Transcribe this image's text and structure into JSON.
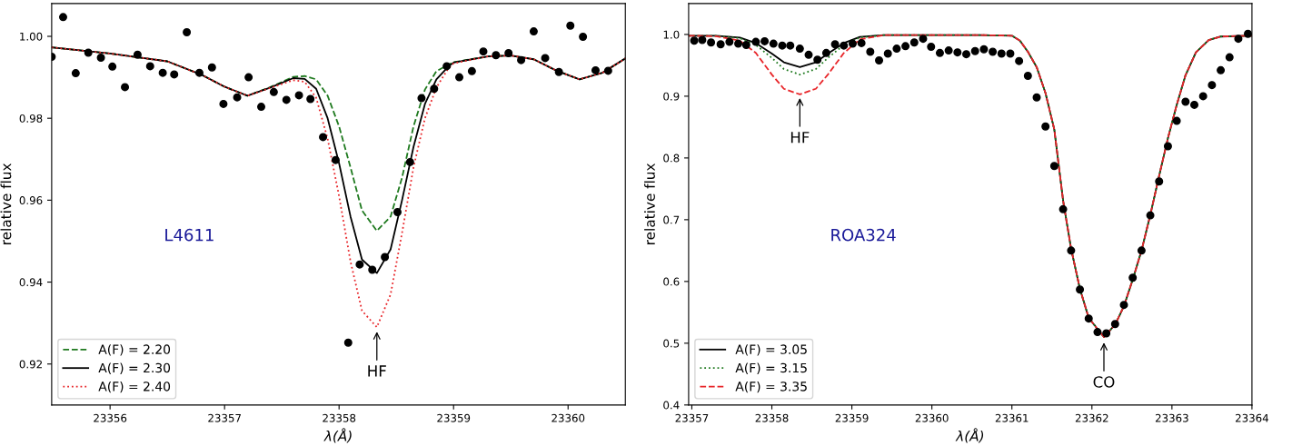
{
  "chart_data": [
    {
      "type": "line",
      "xlabel": "λ(Å)",
      "ylabel": "relative flux",
      "xlim": [
        23355.49,
        23360.5
      ],
      "ylim": [
        0.91,
        1.008
      ],
      "xticks": [
        23356,
        23357,
        23358,
        23359,
        23360
      ],
      "yticks": [
        0.92,
        0.94,
        0.96,
        0.98,
        {
          "value": 1.0,
          "label": "1.00"
        }
      ],
      "grid": false,
      "legend": "bottom left",
      "annotations": [
        "L4611",
        {
          "text": "HF",
          "x": 23358.33,
          "y": 0.9285
        }
      ],
      "series": [
        {
          "name": "A(F) = 2.20",
          "color": "#1f7a1f",
          "line_style": "dashed",
          "marker": "none",
          "x": [
            23355.49,
            23356.0,
            23356.5,
            23356.8,
            23357.0,
            23357.2,
            23357.4,
            23357.6,
            23357.7,
            23357.8,
            23357.9,
            23358.0,
            23358.1,
            23358.2,
            23358.33,
            23358.45,
            23358.55,
            23358.65,
            23358.75,
            23358.85,
            23358.95,
            23359.0,
            23359.3,
            23359.5,
            23359.7,
            23359.9,
            23360.1,
            23360.3,
            23360.5
          ],
          "values": [
            0.9973,
            0.9958,
            0.9939,
            0.9906,
            0.9877,
            0.9855,
            0.9876,
            0.9901,
            0.9903,
            0.9895,
            0.9855,
            0.978,
            0.968,
            0.9575,
            0.9525,
            0.956,
            0.9655,
            0.978,
            0.987,
            0.9915,
            0.993,
            0.9937,
            0.9951,
            0.9953,
            0.9944,
            0.9916,
            0.9895,
            0.9911,
            0.9946
          ]
        },
        {
          "name": "A(F) = 2.30",
          "color": "#000000",
          "line_style": "solid",
          "marker": "none",
          "x": [
            23355.49,
            23356.0,
            23356.5,
            23356.8,
            23357.0,
            23357.2,
            23357.4,
            23357.6,
            23357.7,
            23357.8,
            23357.9,
            23358.0,
            23358.1,
            23358.2,
            23358.33,
            23358.45,
            23358.55,
            23358.65,
            23358.75,
            23358.85,
            23358.95,
            23359.0,
            23359.3,
            23359.5,
            23359.7,
            23359.9,
            23360.1,
            23360.3,
            23360.5
          ],
          "values": [
            0.9973,
            0.9958,
            0.9939,
            0.9906,
            0.9877,
            0.9855,
            0.9875,
            0.9898,
            0.9896,
            0.9872,
            0.98,
            0.969,
            0.956,
            0.9455,
            0.9422,
            0.948,
            0.96,
            0.973,
            0.9835,
            0.9895,
            0.9925,
            0.9936,
            0.9951,
            0.9953,
            0.9944,
            0.9916,
            0.9895,
            0.9911,
            0.9946
          ]
        },
        {
          "name": "A(F) = 2.40",
          "color": "#e8262a",
          "line_style": "dotted",
          "marker": "none",
          "x": [
            23355.49,
            23356.0,
            23356.5,
            23356.8,
            23357.0,
            23357.2,
            23357.4,
            23357.6,
            23357.7,
            23357.8,
            23357.9,
            23358.0,
            23358.1,
            23358.2,
            23358.33,
            23358.45,
            23358.55,
            23358.65,
            23358.75,
            23358.85,
            23358.95,
            23359.0,
            23359.3,
            23359.5,
            23359.7,
            23359.9,
            23360.1,
            23360.3,
            23360.5
          ],
          "values": [
            0.9973,
            0.9958,
            0.9939,
            0.9906,
            0.9877,
            0.9855,
            0.9874,
            0.9893,
            0.9889,
            0.985,
            0.975,
            0.961,
            0.945,
            0.933,
            0.929,
            0.937,
            0.952,
            0.968,
            0.98,
            0.9875,
            0.992,
            0.9934,
            0.9951,
            0.9953,
            0.9944,
            0.9916,
            0.9895,
            0.9911,
            0.9946
          ]
        },
        {
          "type": "scatter",
          "color": "#000000",
          "marker": "circle",
          "x": [
            23355.49,
            23355.59,
            23355.7,
            23355.81,
            23355.92,
            23356.02,
            23356.13,
            23356.24,
            23356.35,
            23356.46,
            23356.56,
            23356.67,
            23356.78,
            23356.89,
            23356.99,
            23357.11,
            23357.21,
            23357.32,
            23357.43,
            23357.54,
            23357.65,
            23357.75,
            23357.86,
            23357.97,
            23358.08,
            23358.18,
            23358.29,
            23358.4,
            23358.51,
            23358.62,
            23358.72,
            23358.83,
            23358.94,
            23359.05,
            23359.16,
            23359.26,
            23359.37,
            23359.48,
            23359.59,
            23359.7,
            23359.8,
            23359.92,
            23360.02,
            23360.13,
            23360.24,
            23360.35
          ],
          "values": [
            0.995,
            1.0047,
            0.991,
            0.996,
            0.9948,
            0.9926,
            0.9876,
            0.9955,
            0.9927,
            0.9911,
            0.9907,
            1.001,
            0.9911,
            0.9924,
            0.9835,
            0.9851,
            0.99,
            0.9828,
            0.9864,
            0.9845,
            0.9856,
            0.9847,
            0.9754,
            0.9698,
            0.9252,
            0.9443,
            0.943,
            0.9461,
            0.9571,
            0.9693,
            0.9849,
            0.9872,
            0.9927,
            0.99,
            0.9915,
            0.9963,
            0.9954,
            0.9959,
            0.9942,
            1.0012,
            0.9947,
            0.9913,
            1.0026,
            0.9999,
            0.9917,
            0.9916
          ]
        }
      ]
    },
    {
      "type": "line",
      "xlabel": "λ(Å)",
      "ylabel": "relative flux",
      "xlim": [
        23356.96,
        23364
      ],
      "ylim": [
        0.4,
        1.05
      ],
      "xticks": [
        23357,
        23358,
        23359,
        23360,
        23361,
        23362,
        23363,
        23364
      ],
      "yticks": [
        0.4,
        0.5,
        0.6,
        0.7,
        0.8,
        0.9,
        {
          "value": 1.0,
          "label": "1.0"
        }
      ],
      "grid": false,
      "legend": "bottom left",
      "annotations": [
        "ROA324",
        {
          "text": "HF",
          "x": 23358.35,
          "y": 0.901
        },
        {
          "text": "CO",
          "x": 23362.15,
          "y": 0.505
        }
      ],
      "series": [
        {
          "name": "A(F) = 3.05",
          "color": "#000000",
          "line_style": "solid",
          "marker": "none",
          "x": [
            23356.96,
            23357.3,
            23357.6,
            23357.8,
            23358.0,
            23358.15,
            23358.35,
            23358.55,
            23358.7,
            23358.9,
            23359.1,
            23359.4,
            23360.0,
            23360.6,
            23361.0,
            23361.1,
            23361.2,
            23361.31,
            23361.42,
            23361.53,
            23361.64,
            23361.74,
            23361.85,
            23361.96,
            23362.15,
            23362.29,
            23362.4,
            23362.51,
            23362.62,
            23362.73,
            23362.84,
            23362.95,
            23363.06,
            23363.17,
            23363.3,
            23363.46,
            23363.61,
            23364.0
          ],
          "values": [
            0.998,
            0.998,
            0.995,
            0.986,
            0.969,
            0.955,
            0.947,
            0.955,
            0.969,
            0.986,
            0.996,
            0.999,
            0.999,
            0.999,
            0.998,
            0.99,
            0.972,
            0.947,
            0.905,
            0.846,
            0.731,
            0.653,
            0.588,
            0.541,
            0.51,
            0.53,
            0.56,
            0.603,
            0.65,
            0.708,
            0.771,
            0.832,
            0.886,
            0.934,
            0.971,
            0.991,
            0.9966,
            0.998
          ]
        },
        {
          "name": "A(F) = 3.15",
          "color": "#1f7a1f",
          "line_style": "dotted",
          "marker": "none",
          "x": [
            23356.96,
            23357.3,
            23357.6,
            23357.8,
            23358.0,
            23358.15,
            23358.35,
            23358.55,
            23358.7,
            23358.9,
            23359.1,
            23359.4,
            23360.0,
            23360.6,
            23361.0,
            23361.1,
            23361.2,
            23361.31,
            23361.42,
            23361.53,
            23361.64,
            23361.74,
            23361.85,
            23361.96,
            23362.15,
            23362.29,
            23362.4,
            23362.51,
            23362.62,
            23362.73,
            23362.84,
            23362.95,
            23363.06,
            23363.17,
            23363.3,
            23363.46,
            23363.61,
            23364.0
          ],
          "values": [
            0.998,
            0.998,
            0.994,
            0.983,
            0.962,
            0.944,
            0.935,
            0.944,
            0.962,
            0.983,
            0.995,
            0.999,
            0.999,
            0.999,
            0.998,
            0.99,
            0.972,
            0.947,
            0.905,
            0.846,
            0.731,
            0.653,
            0.588,
            0.541,
            0.51,
            0.53,
            0.56,
            0.603,
            0.65,
            0.708,
            0.771,
            0.832,
            0.886,
            0.934,
            0.971,
            0.991,
            0.9966,
            0.998
          ]
        },
        {
          "name": "A(F) = 3.35",
          "color": "#e8262a",
          "line_style": "dashed",
          "marker": "none",
          "x": [
            23356.96,
            23357.3,
            23357.6,
            23357.8,
            23358.0,
            23358.15,
            23358.35,
            23358.55,
            23358.7,
            23358.9,
            23359.1,
            23359.4,
            23360.0,
            23360.6,
            23361.0,
            23361.1,
            23361.2,
            23361.31,
            23361.42,
            23361.53,
            23361.64,
            23361.74,
            23361.85,
            23361.96,
            23362.15,
            23362.29,
            23362.4,
            23362.51,
            23362.62,
            23362.73,
            23362.84,
            23362.95,
            23363.06,
            23363.17,
            23363.3,
            23363.46,
            23363.61,
            23364.0
          ],
          "values": [
            0.998,
            0.997,
            0.99,
            0.97,
            0.935,
            0.912,
            0.903,
            0.912,
            0.935,
            0.97,
            0.992,
            0.999,
            0.999,
            0.999,
            0.998,
            0.99,
            0.972,
            0.947,
            0.905,
            0.846,
            0.731,
            0.653,
            0.588,
            0.541,
            0.51,
            0.53,
            0.56,
            0.603,
            0.65,
            0.708,
            0.771,
            0.832,
            0.886,
            0.934,
            0.971,
            0.991,
            0.9966,
            0.998
          ]
        },
        {
          "type": "scatter",
          "color": "#000000",
          "marker": "circle",
          "x": [
            23357.03,
            23357.13,
            23357.24,
            23357.36,
            23357.47,
            23357.58,
            23357.68,
            23357.8,
            23357.91,
            23358.02,
            23358.13,
            23358.23,
            23358.35,
            23358.46,
            23358.57,
            23358.68,
            23358.79,
            23358.9,
            23359.01,
            23359.12,
            23359.23,
            23359.34,
            23359.45,
            23359.56,
            23359.67,
            23359.78,
            23359.89,
            23359.99,
            23360.1,
            23360.21,
            23360.32,
            23360.43,
            23360.54,
            23360.65,
            23360.76,
            23360.87,
            23360.98,
            23361.09,
            23361.2,
            23361.31,
            23361.42,
            23361.53,
            23361.64,
            23361.74,
            23361.85,
            23361.96,
            23362.07,
            23362.18,
            23362.29,
            23362.4,
            23362.51,
            23362.62,
            23362.73,
            23362.84,
            23362.95,
            23363.06,
            23363.17,
            23363.28,
            23363.39,
            23363.5,
            23363.61,
            23363.72,
            23363.83,
            23363.95
          ],
          "values": [
            0.99,
            0.991,
            0.987,
            0.984,
            0.988,
            0.985,
            0.983,
            0.988,
            0.989,
            0.985,
            0.982,
            0.982,
            0.977,
            0.967,
            0.959,
            0.97,
            0.984,
            0.982,
            0.985,
            0.986,
            0.972,
            0.958,
            0.969,
            0.977,
            0.981,
            0.987,
            0.993,
            0.98,
            0.97,
            0.974,
            0.971,
            0.968,
            0.973,
            0.976,
            0.972,
            0.969,
            0.969,
            0.957,
            0.933,
            0.898,
            0.851,
            0.787,
            0.717,
            0.65,
            0.587,
            0.54,
            0.518,
            0.516,
            0.531,
            0.562,
            0.606,
            0.65,
            0.707,
            0.762,
            0.819,
            0.86,
            0.891,
            0.886,
            0.9,
            0.918,
            0.942,
            0.963,
            0.993,
            1.001
          ]
        }
      ]
    }
  ]
}
